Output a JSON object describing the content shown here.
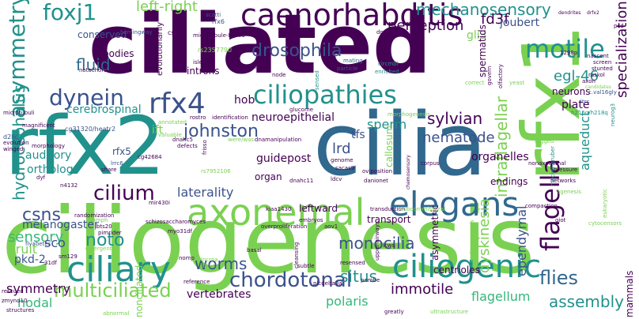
{
  "palette": {
    "purple": "#440154",
    "indigo": "#3b528b",
    "blue": "#31688e",
    "teal": "#21918c",
    "green": "#35b779",
    "lime": "#7ad151",
    "yellow": "#fde725"
  },
  "words": [
    {
      "id": "ciliogenesis",
      "text": "ciliogenesis",
      "color": "#7ad151"
    },
    {
      "id": "ciliated",
      "text": "ciliated",
      "color": "#440154"
    },
    {
      "id": "cilia",
      "text": "cilia",
      "color": "#31688e"
    },
    {
      "id": "rfx2",
      "text": "rfx2",
      "color": "#21918c"
    },
    {
      "id": "rfx1",
      "text": "rfx1",
      "color": "#7ad151"
    },
    {
      "id": "axonemal",
      "text": "axonemal",
      "color": "#7ad151"
    },
    {
      "id": "elegans",
      "text": "elegans",
      "color": "#31688e"
    },
    {
      "id": "ciliary",
      "text": "ciliary",
      "color": "#21918c"
    },
    {
      "id": "ciliogenic",
      "text": "ciliogenic",
      "color": "#21918c"
    },
    {
      "id": "caenorhabditis",
      "text": "caenorhabditis",
      "color": "#440154"
    },
    {
      "id": "ciliopathies",
      "text": "ciliopathies",
      "color": "#21918c"
    },
    {
      "id": "rfx4",
      "text": "rfx4",
      "color": "#3b528b"
    },
    {
      "id": "motile",
      "text": "motile",
      "color": "#21918c"
    },
    {
      "id": "flagella",
      "text": "flagella",
      "color": "#440154"
    },
    {
      "id": "asymmetry",
      "text": "asymmetry",
      "color": "#21918c"
    },
    {
      "id": "foxj1",
      "text": "foxj1",
      "color": "#21918c"
    },
    {
      "id": "dynein",
      "text": "dynein",
      "color": "#3b528b"
    },
    {
      "id": "cilium",
      "text": "cilium",
      "color": "#440154"
    },
    {
      "id": "chordotonal",
      "text": "chordotonal",
      "color": "#3b528b"
    },
    {
      "id": "multiciliated",
      "text": "multiciliated",
      "color": "#7ad151"
    },
    {
      "id": "drosophila",
      "text": "drosophila",
      "color": "#3b528b"
    },
    {
      "id": "mechanosensory",
      "text": "mechanosensory",
      "color": "#21918c"
    },
    {
      "id": "hydrocephalus",
      "text": "hydrocephalus",
      "color": "#21918c"
    },
    {
      "id": "johnston",
      "text": "johnston",
      "color": "#3b528b"
    },
    {
      "id": "intraflagellar",
      "text": "intraflagellar",
      "color": "#7ad151"
    },
    {
      "id": "flies",
      "text": "flies",
      "color": "#31688e"
    },
    {
      "id": "worms",
      "text": "worms",
      "color": "#3b528b"
    },
    {
      "id": "assembly",
      "text": "assembly",
      "color": "#21918c"
    },
    {
      "id": "situs",
      "text": "situs",
      "color": "#21918c"
    },
    {
      "id": "monocilia",
      "text": "monocilia",
      "color": "#3b528b"
    },
    {
      "id": "dyskinesia",
      "text": "dyskinesia",
      "color": "#7ad151"
    },
    {
      "id": "ependymal",
      "text": "ependymal",
      "color": "#3b528b"
    },
    {
      "id": "specialization",
      "text": "specialization",
      "color": "#440154"
    },
    {
      "id": "sylvian",
      "text": "sylvian",
      "color": "#440154"
    },
    {
      "id": "left-right",
      "text": "left-right",
      "color": "#7ad151"
    },
    {
      "id": "perception",
      "text": "perception",
      "color": "#440154"
    },
    {
      "id": "fd3f",
      "text": "fd3f",
      "color": "#440154"
    },
    {
      "id": "nematode",
      "text": "nematode",
      "color": "#3b528b"
    },
    {
      "id": "egl-46",
      "text": "egl-46",
      "color": "#21918c"
    },
    {
      "id": "aqueduct",
      "text": "aqueduct",
      "color": "#21918c"
    },
    {
      "id": "sensory",
      "text": "sensory",
      "color": "#35b779"
    },
    {
      "id": "csns",
      "text": "csns",
      "color": "#3b528b"
    },
    {
      "id": "noto",
      "text": "noto",
      "color": "#21918c"
    },
    {
      "id": "nodal",
      "text": "nodal",
      "color": "#35b779"
    },
    {
      "id": "laterality",
      "text": "laterality",
      "color": "#3b528b"
    },
    {
      "id": "polaris",
      "text": "polaris",
      "color": "#35b779"
    },
    {
      "id": "immotile",
      "text": "immotile",
      "color": "#440154"
    },
    {
      "id": "flagellum",
      "text": "flagellum",
      "color": "#35b779"
    },
    {
      "id": "sperm",
      "text": "sperm",
      "color": "#21918c"
    },
    {
      "id": "fluid",
      "text": "fluid",
      "color": "#31688e"
    },
    {
      "id": "neuroepithelial",
      "text": "neuroepithelial",
      "color": "#440154"
    },
    {
      "id": "lrd",
      "text": "lrd",
      "color": "#3b528b"
    },
    {
      "id": "organelles",
      "text": "organelles",
      "color": "#440154"
    },
    {
      "id": "vertebrates",
      "text": "vertebrates",
      "color": "#440154"
    },
    {
      "id": "symmetry",
      "text": "symmetry",
      "color": "#440154"
    },
    {
      "id": "fruit",
      "text": "fruit",
      "color": "#7ad151"
    },
    {
      "id": "guidepost",
      "text": "guidepost",
      "color": "#440154"
    },
    {
      "id": "cerebrospinal",
      "text": "cerebrospinal",
      "color": "#21918c"
    },
    {
      "id": "hob",
      "text": "hob",
      "color": "#440154"
    },
    {
      "id": "gli3",
      "text": "gli3",
      "color": "#7ad151"
    },
    {
      "id": "joubert",
      "text": "joubert",
      "color": "#3b528b"
    },
    {
      "id": "neurons",
      "text": "neurons",
      "color": "#440154"
    },
    {
      "id": "auditory",
      "text": "auditory",
      "color": "#21918c"
    },
    {
      "id": "ortholog",
      "text": "ortholog",
      "color": "#21918c"
    },
    {
      "id": "melanogaster",
      "text": "melanogaster",
      "color": "#3b528b"
    },
    {
      "id": "tfs",
      "text": "tfs",
      "color": "#3b528b"
    },
    {
      "id": "ift",
      "text": "ift",
      "color": "#7ad151"
    },
    {
      "id": "rfx5",
      "text": "rfx5",
      "color": "#3b528b"
    },
    {
      "id": "sco",
      "text": "sco",
      "color": "#3b528b"
    },
    {
      "id": "pkd-2",
      "text": "pkd-2",
      "color": "#3b528b"
    },
    {
      "id": "conserved",
      "text": "conserved",
      "color": "#3b528b"
    },
    {
      "id": "introns",
      "text": "introns",
      "color": "#440154"
    },
    {
      "id": "bodies",
      "text": "bodies",
      "color": "#440154"
    },
    {
      "id": "plate",
      "text": "plate",
      "color": "#440154"
    },
    {
      "id": "mammals",
      "text": "mammals",
      "color": "#440154"
    },
    {
      "id": "endings",
      "text": "endings",
      "color": "#440154"
    },
    {
      "id": "centrioles",
      "text": "centrioles",
      "color": "#440154"
    },
    {
      "id": "transport",
      "text": "transport",
      "color": "#440154"
    },
    {
      "id": "nonciliated",
      "text": "nonciliated",
      "color": "#7ad151"
    },
    {
      "id": "organ",
      "text": "organ",
      "color": "#440154"
    },
    {
      "id": "spermatids",
      "text": "spermatids",
      "color": "#440154"
    },
    {
      "id": "callosum",
      "text": "callosum",
      "color": "#7ad151"
    },
    {
      "id": "leftward",
      "text": "leftward",
      "color": "#440154"
    },
    {
      "id": "asymmetric",
      "text": "asymmetric",
      "color": "#440154"
    },
    {
      "id": "evolutionarily",
      "text": "evolutionarily",
      "color": "#440154"
    },
    {
      "id": "rfx6",
      "text": "rfx6",
      "color": "#3b528b"
    },
    {
      "id": "rs2357790",
      "text": "rs2357790",
      "color": "#7ad151"
    },
    {
      "id": "hemingway",
      "text": "hemingway",
      "color": "#3b528b"
    },
    {
      "id": "scotti",
      "text": "scotti",
      "color": "#3b528b"
    },
    {
      "id": "csf",
      "text": "csf",
      "color": "#440154"
    },
    {
      "id": "microtubule-based",
      "text": "microtubule-based",
      "color": "#440154"
    },
    {
      "id": "islet",
      "text": "islet",
      "color": "#440154"
    },
    {
      "id": "kkh",
      "text": "kkh",
      "color": "#440154"
    },
    {
      "id": "node",
      "text": "node",
      "color": "#440154"
    },
    {
      "id": "dnaaf1-4",
      "text": "dnaaf1-4",
      "color": "#440154"
    },
    {
      "id": "mutants",
      "text": "mutants",
      "color": "#440154"
    },
    {
      "id": "mating",
      "text": "mating",
      "color": "#31688e"
    },
    {
      "id": "particle",
      "text": "particle",
      "color": "#3b528b"
    },
    {
      "id": "notochord",
      "text": "notochord",
      "color": "#440154"
    },
    {
      "id": "circmbl",
      "text": "circmbl",
      "color": "#21918c"
    },
    {
      "id": "enriched",
      "text": "enriched",
      "color": "#21918c"
    },
    {
      "id": "dendrites",
      "text": "dendrites",
      "color": "#440154"
    },
    {
      "id": "drfx2",
      "text": "drfx2",
      "color": "#440154"
    },
    {
      "id": "pcd",
      "text": "pcd",
      "color": "#440154"
    },
    {
      "id": "govern",
      "text": "govern",
      "color": "#440154"
    },
    {
      "id": "olfactory",
      "text": "olfactory",
      "color": "#440154"
    },
    {
      "id": "1298p",
      "text": "1298p",
      "color": "#440154"
    },
    {
      "id": "nascent",
      "text": "nascent",
      "color": "#440154"
    },
    {
      "id": "screen",
      "text": "screen",
      "color": "#440154"
    },
    {
      "id": "stunted",
      "text": "stunted",
      "color": "#440154"
    },
    {
      "id": "axon",
      "text": "axon",
      "color": "#440154"
    },
    {
      "id": "raskol",
      "text": "raskol",
      "color": "#440154"
    },
    {
      "id": "yeast",
      "text": "yeast",
      "color": "#7ad151"
    },
    {
      "id": "candidates",
      "text": "candidates",
      "color": "#7ad151"
    },
    {
      "id": "c-val16gly",
      "text": "c.val16gly",
      "color": "#3b528b"
    },
    {
      "id": "itrs",
      "text": "itrs",
      "color": "#3b528b"
    },
    {
      "id": "h216q-h218q",
      "text": "h216q/h218q",
      "color": "#21918c"
    },
    {
      "id": "neurog3",
      "text": "neurog3",
      "color": "#21918c"
    },
    {
      "id": "microtubuli",
      "text": "microtubuli",
      "color": "#440154"
    },
    {
      "id": "magnificent",
      "text": "magnificent",
      "color": "#440154"
    },
    {
      "id": "cg31320-heatr2",
      "text": "cg31320/heatr2",
      "color": "#3b528b"
    },
    {
      "id": "valuable",
      "text": "valuable",
      "color": "#7ad151"
    },
    {
      "id": "annotated",
      "text": "annotated",
      "color": "#7ad151"
    },
    {
      "id": "rostro",
      "text": "rostro",
      "color": "#440154"
    },
    {
      "id": "identification",
      "text": "identification",
      "color": "#440154"
    },
    {
      "id": "glucome",
      "text": "glucome",
      "color": "#440154"
    },
    {
      "id": "morphogenesis",
      "text": "morphogenesis",
      "color": "#7ad151"
    },
    {
      "id": "sensed",
      "text": "sensed",
      "color": "#21918c"
    },
    {
      "id": "d2lic",
      "text": "d2lic",
      "color": "#3b528b"
    },
    {
      "id": "evolution",
      "text": "evolution",
      "color": "#440154"
    },
    {
      "id": "winged",
      "text": "winged",
      "color": "#440154"
    },
    {
      "id": "morphology",
      "text": "morphology",
      "color": "#440154"
    },
    {
      "id": "dnahc5",
      "text": "dnahc5",
      "color": "#440154"
    },
    {
      "id": "defects",
      "text": "defects",
      "color": "#440154"
    },
    {
      "id": "cg42684",
      "text": "cg42684",
      "color": "#440154"
    },
    {
      "id": "frisso",
      "text": "frisso",
      "color": "#440154"
    },
    {
      "id": "were-was",
      "text": "were/was",
      "color": "#7ad151"
    },
    {
      "id": "dnamanipulation",
      "text": "dnamanipulation",
      "color": "#440154"
    },
    {
      "id": "genome",
      "text": "genome",
      "color": "#440154"
    },
    {
      "id": "rs7952106",
      "text": "rs7952106",
      "color": "#7ad151"
    },
    {
      "id": "lrrc6",
      "text": "lrrc6",
      "color": "#3b528b"
    },
    {
      "id": "share",
      "text": "share",
      "color": "#440154"
    },
    {
      "id": "dyf",
      "text": "dyf",
      "color": "#440154"
    },
    {
      "id": "n4132",
      "text": "n4132",
      "color": "#440154"
    },
    {
      "id": "mir430i",
      "text": "mir430i",
      "color": "#440154"
    },
    {
      "id": "kiaa1430",
      "text": "kiaa1430",
      "color": "#440154"
    },
    {
      "id": "dnahc11",
      "text": "dnahc11",
      "color": "#440154"
    },
    {
      "id": "ldcv",
      "text": "ldcv",
      "color": "#440154"
    },
    {
      "id": "sacas9",
      "text": "sacas9",
      "color": "#440154"
    },
    {
      "id": "oviposition",
      "text": "oviposition",
      "color": "#440154"
    },
    {
      "id": "danionet",
      "text": "danionet",
      "color": "#440154"
    },
    {
      "id": "chemosensory",
      "text": "chemosensory",
      "color": "#440154"
    },
    {
      "id": "corpus",
      "text": "corpus",
      "color": "#440154"
    },
    {
      "id": "nonaxonemal",
      "text": "nonaxonemal",
      "color": "#440154"
    },
    {
      "id": "tagged",
      "text": "tagged",
      "color": "#7ad151"
    },
    {
      "id": "meckel-gruber",
      "text": "meckel-gruber",
      "color": "#21918c"
    },
    {
      "id": "pressure",
      "text": "pressure",
      "color": "#440154"
    },
    {
      "id": "networks",
      "text": "networks",
      "color": "#440154"
    },
    {
      "id": "agenesis",
      "text": "agenesis",
      "color": "#7ad151"
    },
    {
      "id": "eukaryotic",
      "text": "eukaryotic",
      "color": "#7ad151"
    },
    {
      "id": "randomization",
      "text": "randomization",
      "color": "#440154"
    },
    {
      "id": "embryos",
      "text": "embryos",
      "color": "#440154"
    },
    {
      "id": "transduction",
      "text": "transduction",
      "color": "#440154"
    },
    {
      "id": "subcommissural",
      "text": "subcommissural",
      "color": "#7ad151"
    },
    {
      "id": "compaction",
      "text": "compaction",
      "color": "#440154"
    },
    {
      "id": "giot",
      "text": "giot",
      "color": "#440154"
    },
    {
      "id": "cytocensors",
      "text": "cytocensors",
      "color": "#7ad151"
    },
    {
      "id": "flyabetes",
      "text": "flyabetes",
      "color": "#3b528b"
    },
    {
      "id": "schizosaccharomyces",
      "text": "schizosaccharomyces",
      "color": "#440154"
    },
    {
      "id": "myo31df",
      "text": "myo31df",
      "color": "#440154"
    },
    {
      "id": "overproliferation",
      "text": "overproliferation",
      "color": "#440154"
    },
    {
      "id": "aov1",
      "text": "aov1",
      "color": "#440154"
    },
    {
      "id": "pimrider",
      "text": "pimrider",
      "color": "#440154"
    },
    {
      "id": "sm129",
      "text": "sm129",
      "color": "#440154"
    },
    {
      "id": "divergent",
      "text": "divergent",
      "color": "#7ad151"
    },
    {
      "id": "nomph",
      "text": "nomph",
      "color": "#7ad151"
    },
    {
      "id": "basal",
      "text": "basal",
      "color": "#440154"
    },
    {
      "id": "icws",
      "text": "icws",
      "color": "#440154"
    },
    {
      "id": "embryogenesis",
      "text": "embryogenesis",
      "color": "#7ad151"
    },
    {
      "id": "31df",
      "text": "31df",
      "color": "#440154"
    },
    {
      "id": "nomp",
      "text": "nomp",
      "color": "#440154"
    },
    {
      "id": "lncrna",
      "text": "lncrna",
      "color": "#7ad151"
    },
    {
      "id": "ldcvs",
      "text": "ldcvs",
      "color": "#7ad151"
    },
    {
      "id": "cleansing",
      "text": "cleansing",
      "color": "#440154"
    },
    {
      "id": "resensed",
      "text": "resensed",
      "color": "#440154"
    },
    {
      "id": "upper-airways",
      "text": "upper-airways",
      "color": "#440154"
    },
    {
      "id": "subtle",
      "text": "subtle",
      "color": "#440154"
    },
    {
      "id": "plcdelta3a",
      "text": "plcdelta3a",
      "color": "#440154"
    },
    {
      "id": "pombe",
      "text": "pombe",
      "color": "#440154"
    },
    {
      "id": "reference",
      "text": "reference",
      "color": "#440154"
    },
    {
      "id": "zmynd10",
      "text": "zmynd10",
      "color": "#440154"
    },
    {
      "id": "structures",
      "text": "structures",
      "color": "#440154"
    },
    {
      "id": "jbts20",
      "text": "jbts20",
      "color": "#440154"
    },
    {
      "id": "abnormal",
      "text": "abnormal",
      "color": "#7ad151"
    },
    {
      "id": "greatly",
      "text": "greatly",
      "color": "#440154"
    },
    {
      "id": "ultrastructure",
      "text": "ultrastructure",
      "color": "#7ad151"
    },
    {
      "id": "correct",
      "text": "correct",
      "color": "#7ad151"
    },
    {
      "id": "rescued",
      "text": "rescued",
      "color": "#440154"
    }
  ]
}
